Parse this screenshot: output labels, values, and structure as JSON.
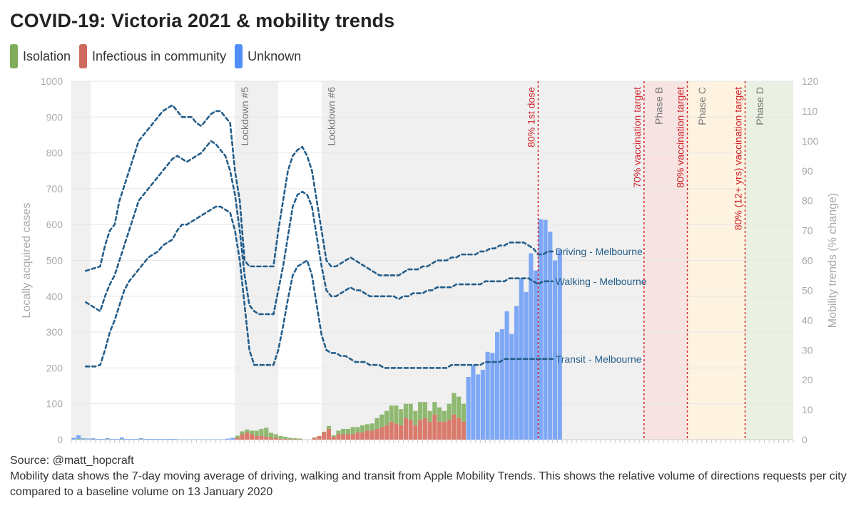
{
  "title": "COVID-19: Victoria 2021 & mobility trends",
  "legend": [
    {
      "label": "Isolation",
      "color": "#7fad5a"
    },
    {
      "label": "Infectious in community",
      "color": "#cf6a5e"
    },
    {
      "label": "Unknown",
      "color": "#4f8ff7"
    }
  ],
  "footer": {
    "source": "Source: @matt_hopcraft",
    "note": "Mobility data shows the 7-day moving average of driving, walking and transit from Apple Mobility Trends. This shows the relative volume of directions requests per city compared to a baseline volume on 13 January 2020"
  },
  "colors": {
    "isolation": "#8fb870",
    "infectious": "#d97a6c",
    "unknown": "#7ea8f5",
    "mobility_line": "#245e8a",
    "vax_line": "#d0242c",
    "grid": "#e6e6e6",
    "axis_text": "#aaaaaa"
  },
  "chart_data": {
    "type": "bar",
    "title": "COVID-19: Victoria 2021 & mobility trends",
    "xlabel": "",
    "ylabel": "Locally acquired cases",
    "ylabel_right": "Mobility trends (% change)",
    "ylim": [
      0,
      1000
    ],
    "ylim_right": [
      0,
      120
    ],
    "yticks": [
      "0",
      "100",
      "200",
      "300",
      "400",
      "500",
      "600",
      "700",
      "800",
      "900",
      "1000"
    ],
    "yticks_right": [
      "0",
      "10",
      "20",
      "30",
      "40",
      "50",
      "60",
      "70",
      "80",
      "90",
      "100",
      "110",
      "120"
    ],
    "num_days": 150,
    "lockdown_bands": [
      [
        0,
        4
      ],
      [
        34,
        43
      ],
      [
        52,
        149
      ]
    ],
    "phase_bands": [
      {
        "start": 119,
        "end": 128,
        "color": "#f7e4e2"
      },
      {
        "start": 128,
        "end": 140,
        "color": "#fdf3e0"
      },
      {
        "start": 140,
        "end": 150,
        "color": "#eaf1e2"
      }
    ],
    "annotations": [
      {
        "day": 35,
        "label": "Lockdown #5",
        "kind": "lockdown"
      },
      {
        "day": 53,
        "label": "Lockdown #6",
        "kind": "lockdown"
      },
      {
        "day": 97,
        "label": "80% 1st dose",
        "kind": "vax"
      },
      {
        "day": 119,
        "label": "70% vaccination target",
        "kind": "vax"
      },
      {
        "day": 121,
        "label": "Phase B",
        "kind": "phase"
      },
      {
        "day": 128,
        "label": "80% vaccination target",
        "kind": "vax"
      },
      {
        "day": 130,
        "label": "Phase C",
        "kind": "phase"
      },
      {
        "day": 140,
        "label": "80% (12+ yrs) vaccination target",
        "kind": "vax"
      },
      {
        "day": 142,
        "label": "Phase D",
        "kind": "phase"
      }
    ],
    "cases": {
      "isolation": [
        0,
        2,
        1,
        0,
        1,
        0,
        0,
        1,
        0,
        0,
        1,
        0,
        0,
        0,
        1,
        0,
        0,
        0,
        0,
        0,
        0,
        0,
        0,
        0,
        0,
        0,
        0,
        0,
        0,
        0,
        0,
        0,
        0,
        0,
        6,
        8,
        8,
        10,
        15,
        20,
        25,
        14,
        10,
        8,
        6,
        4,
        3,
        2,
        0,
        0,
        1,
        0,
        2,
        8,
        4,
        10,
        15,
        15,
        20,
        15,
        20,
        18,
        20,
        30,
        35,
        40,
        45,
        50,
        45,
        40,
        45,
        40,
        50,
        45,
        30,
        35,
        40,
        30,
        45,
        60,
        60,
        50,
        0,
        0,
        0,
        0,
        0,
        0,
        0,
        0,
        0,
        0,
        0,
        0,
        0,
        0,
        0,
        0
      ],
      "infectious": [
        0,
        0,
        0,
        0,
        0,
        0,
        0,
        0,
        0,
        0,
        0,
        0,
        0,
        0,
        0,
        0,
        0,
        0,
        0,
        0,
        0,
        0,
        0,
        0,
        0,
        0,
        0,
        0,
        0,
        0,
        0,
        0,
        0,
        0,
        5,
        15,
        20,
        15,
        10,
        10,
        8,
        5,
        5,
        2,
        2,
        1,
        1,
        1,
        0,
        0,
        5,
        10,
        20,
        30,
        8,
        15,
        15,
        15,
        15,
        20,
        20,
        25,
        25,
        30,
        35,
        40,
        50,
        45,
        40,
        60,
        55,
        40,
        55,
        60,
        50,
        70,
        50,
        50,
        55,
        70,
        60,
        50,
        0,
        0,
        0,
        0,
        0,
        0,
        0,
        0,
        0,
        0,
        0,
        0,
        0,
        0,
        0,
        0
      ],
      "unknown": [
        5,
        10,
        3,
        3,
        3,
        2,
        2,
        3,
        2,
        2,
        5,
        2,
        2,
        2,
        3,
        2,
        2,
        2,
        2,
        2,
        2,
        2,
        1,
        1,
        1,
        1,
        1,
        1,
        1,
        1,
        1,
        1,
        3,
        5,
        0,
        0,
        0,
        0,
        0,
        0,
        0,
        0,
        0,
        0,
        0,
        0,
        0,
        0,
        0,
        0,
        0,
        0,
        0,
        0,
        0,
        0,
        0,
        0,
        0,
        0,
        0,
        0,
        0,
        0,
        0,
        0,
        0,
        0,
        0,
        0,
        0,
        0,
        0,
        0,
        0,
        0,
        0,
        0,
        0,
        0,
        0,
        0,
        175,
        207,
        182,
        195,
        245,
        242,
        300,
        308,
        358,
        295,
        373,
        450,
        412,
        520,
        472,
        615,
        613,
        580,
        500,
        530
      ]
    },
    "cases_x_offset": 0,
    "series": [
      {
        "name": "Driving - Melbourne",
        "label": "Driving - Melbourne",
        "values": [
          56.5,
          57,
          57.5,
          58,
          65,
          70,
          72,
          80,
          85,
          90,
          95,
          100,
          102,
          104,
          106,
          108,
          110,
          111,
          112,
          110,
          108,
          108,
          108,
          106,
          105,
          107,
          109,
          110,
          110,
          108,
          106,
          90,
          80,
          60,
          58,
          58,
          58,
          58,
          58,
          58,
          70,
          80,
          90,
          95,
          97,
          98,
          95,
          90,
          80,
          70,
          60,
          58,
          58,
          59,
          60,
          61,
          60,
          59,
          58,
          57,
          56,
          55,
          55,
          55,
          55,
          55,
          56,
          57,
          57,
          57,
          58,
          58,
          59,
          60,
          60,
          60,
          61,
          61,
          62,
          62,
          62,
          62,
          63,
          63,
          64,
          64,
          65,
          65,
          66,
          66,
          66,
          66,
          65,
          64,
          62,
          62,
          63,
          63
        ]
      },
      {
        "name": "Walking - Melbourne",
        "label": "Walking - Melbourne",
        "values": [
          46,
          45,
          44,
          43,
          48,
          52,
          55,
          60,
          65,
          70,
          75,
          80,
          82,
          84,
          86,
          88,
          90,
          92,
          94,
          95,
          94,
          93,
          94,
          95,
          96,
          98,
          100,
          99,
          97,
          95,
          90,
          82,
          70,
          55,
          45,
          43,
          42,
          42,
          42,
          42,
          50,
          58,
          68,
          78,
          82,
          83,
          82,
          78,
          68,
          58,
          50,
          48,
          48,
          49,
          50,
          51,
          50,
          50,
          49,
          48,
          48,
          48,
          48,
          48,
          48,
          47,
          48,
          48,
          49,
          49,
          49,
          50,
          50,
          51,
          51,
          51,
          51,
          52,
          52,
          52,
          52,
          52,
          52,
          53,
          53,
          53,
          53,
          53,
          54,
          54,
          54,
          54,
          54,
          53,
          52,
          53,
          53,
          53
        ]
      },
      {
        "name": "Transit - Melbourne",
        "label": "Transit - Melbourne",
        "values": [
          24.5,
          24.5,
          24.5,
          25,
          30,
          36,
          40,
          45,
          50,
          53,
          55,
          57,
          59,
          61,
          62,
          63,
          65,
          66,
          67,
          70,
          72,
          72,
          73,
          74,
          75,
          76,
          77,
          78,
          78,
          77,
          76,
          70,
          60,
          45,
          30,
          25,
          25,
          25,
          25,
          25,
          30,
          38,
          47,
          55,
          58,
          59,
          60,
          55,
          45,
          35,
          30,
          29,
          29,
          28,
          28,
          27,
          26,
          26,
          26,
          25,
          25,
          25,
          24,
          24,
          24,
          24,
          24,
          24,
          24,
          24,
          24,
          24,
          24,
          24,
          24,
          24,
          25,
          25,
          25,
          25,
          25,
          25,
          25,
          26,
          26,
          26,
          26,
          27,
          27,
          27,
          27,
          27,
          27,
          27,
          27,
          27,
          27,
          27
        ]
      }
    ]
  }
}
